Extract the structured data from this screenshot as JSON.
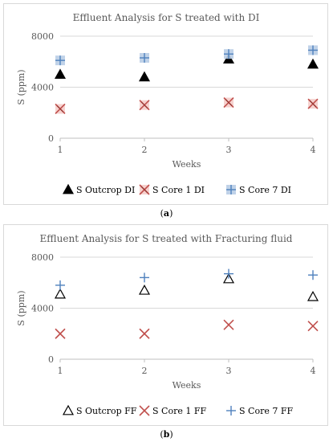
{
  "chart_data": [
    {
      "type": "scatter",
      "title": "Effluent Analysis for S treated with DI",
      "xlabel": "Weeks",
      "ylabel": "S (ppm)",
      "x": [
        1,
        2,
        3,
        4
      ],
      "xlim": [
        1,
        4
      ],
      "ylim": [
        0,
        8000
      ],
      "yticks": [
        "0",
        "4000",
        "8000"
      ],
      "xticks": [
        "1",
        "2",
        "3",
        "4"
      ],
      "grid": "horizontal",
      "legend_position": "bottom",
      "caption": "(a)",
      "series": [
        {
          "name": "S Outcrop DI",
          "marker": "filled-triangle",
          "color": "#000000",
          "values": [
            5000,
            4800,
            6200,
            5800
          ]
        },
        {
          "name": "S Core 1 DI",
          "marker": "x-on-square",
          "color": "#c0504d",
          "values": [
            2300,
            2600,
            2800,
            2700
          ]
        },
        {
          "name": "S Core 7 DI",
          "marker": "plus-on-square",
          "color": "#4f81bd",
          "values": [
            6100,
            6300,
            6600,
            6900
          ]
        }
      ]
    },
    {
      "type": "scatter",
      "title": "Effluent Analysis for S treated with Fracturing fluid",
      "xlabel": "Weeks",
      "ylabel": "S (ppm)",
      "x": [
        1,
        2,
        3,
        4
      ],
      "xlim": [
        1,
        4
      ],
      "ylim": [
        0,
        8000
      ],
      "yticks": [
        "0",
        "4000",
        "8000"
      ],
      "xticks": [
        "1",
        "2",
        "3",
        "4"
      ],
      "grid": "horizontal",
      "legend_position": "bottom",
      "caption": "(b)",
      "series": [
        {
          "name": "S Outcrop FF",
          "marker": "open-triangle",
          "color": "#000000",
          "values": [
            5100,
            5400,
            6300,
            4900
          ]
        },
        {
          "name": "S Core 1 FF",
          "marker": "x",
          "color": "#c0504d",
          "values": [
            2000,
            2000,
            2700,
            2600
          ]
        },
        {
          "name": "S Core 7 FF",
          "marker": "plus",
          "color": "#4f81bd",
          "values": [
            5800,
            6400,
            6700,
            6600
          ]
        }
      ]
    }
  ]
}
